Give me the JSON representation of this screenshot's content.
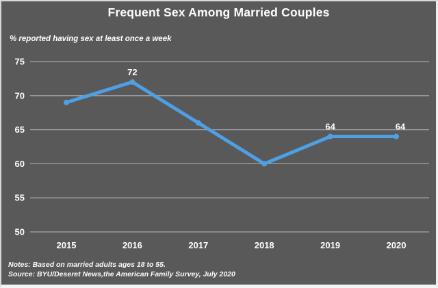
{
  "header": {
    "title": "Frequent Sex Among Married Couples",
    "subtitle": "% reported having sex at least once a week"
  },
  "footer": {
    "notes": "Notes: Based on married adults ages 18 to 55.",
    "source": "Source: BYU/Deseret News,the American Family Survey, July 2020"
  },
  "colors": {
    "background": "#595959",
    "line": "#4DA0E4",
    "grid": "#A4A4A4",
    "text": "#FFFFFF",
    "border": "#D8D8D8"
  },
  "chart_data": {
    "type": "line",
    "title": "Frequent Sex Among Married Couples",
    "subtitle": "% reported having sex at least once a week",
    "x": [
      "2015",
      "2016",
      "2017",
      "2018",
      "2019",
      "2020"
    ],
    "values": [
      69,
      72,
      66,
      60,
      64,
      64
    ],
    "point_labels": [
      {
        "index": 1,
        "text": "72"
      },
      {
        "index": 4,
        "text": "64"
      },
      {
        "index": 5,
        "text": "64"
      }
    ],
    "xlabel": "",
    "ylabel": "% reported having sex at least once a week",
    "ylim": [
      50,
      75
    ],
    "yticks": [
      75,
      70,
      65,
      60,
      55,
      50
    ],
    "grid": "horizontal",
    "legend": "none",
    "markers": true,
    "line_color": "#4DA0E4"
  }
}
